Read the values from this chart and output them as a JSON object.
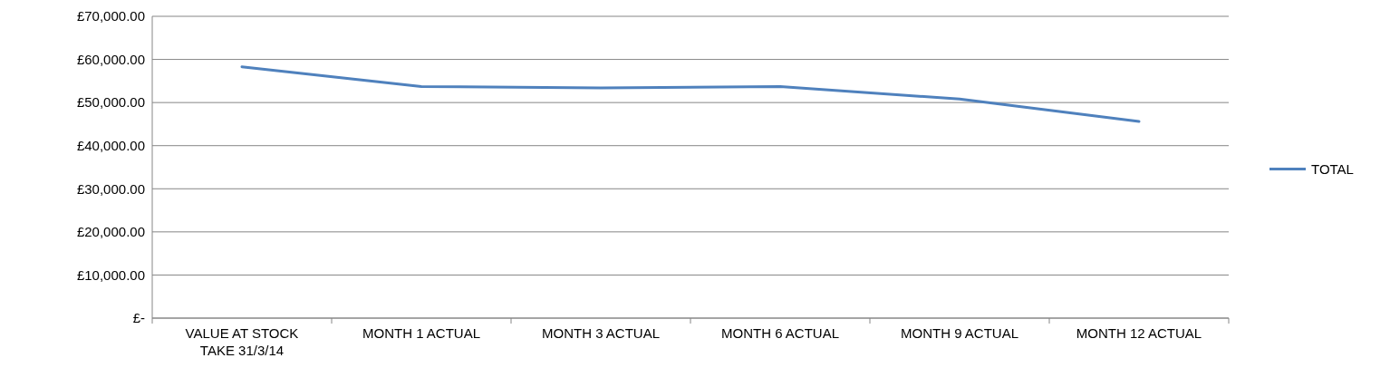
{
  "chart_data": {
    "type": "line",
    "categories": [
      "VALUE AT STOCK TAKE 31/3/14",
      "MONTH 1 ACTUAL",
      "MONTH 3 ACTUAL",
      "MONTH 6 ACTUAL",
      "MONTH 9 ACTUAL",
      "MONTH 12 ACTUAL"
    ],
    "series": [
      {
        "name": "TOTAL",
        "color": "#4f81bd",
        "values": [
          58300,
          53700,
          53400,
          53700,
          50800,
          45600
        ]
      }
    ],
    "ylim": [
      0,
      70000
    ],
    "yticks": [
      {
        "value": 0,
        "label": "£-"
      },
      {
        "value": 10000,
        "label": "£10,000.00"
      },
      {
        "value": 20000,
        "label": "£20,000.00"
      },
      {
        "value": 30000,
        "label": "£30,000.00"
      },
      {
        "value": 40000,
        "label": "£40,000.00"
      },
      {
        "value": 50000,
        "label": "£50,000.00"
      },
      {
        "value": 60000,
        "label": "£60,000.00"
      },
      {
        "value": 70000,
        "label": "£70,000.00"
      }
    ],
    "grid": "y",
    "legend": "right",
    "marker": "none",
    "line_style": "solid"
  }
}
